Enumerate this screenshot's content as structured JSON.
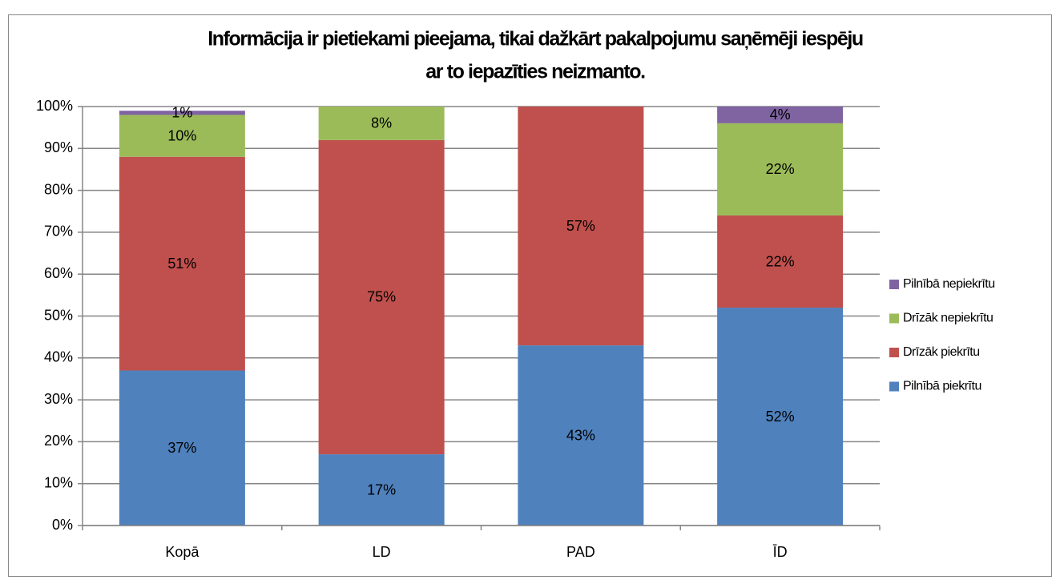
{
  "chart_data": {
    "type": "stacked_bar",
    "title": [
      "Informācija ir pietiekami pieejama, tikai dažkārt pakalpojumu saņēmēji iespēju",
      "ar to iepazīties neizmanto."
    ],
    "categories": [
      "Kopā",
      "LD",
      "PAD",
      "ĪD"
    ],
    "series": [
      {
        "name": "Pilnībā piekrītu",
        "color": "#4f81bd",
        "values": [
          37,
          17,
          43,
          52
        ],
        "value_labels": [
          "37%",
          "17%",
          "43%",
          "52%"
        ]
      },
      {
        "name": "Drīzāk piekrītu",
        "color": "#c0504d",
        "values": [
          51,
          75,
          57,
          22
        ],
        "value_labels": [
          "51%",
          "75%",
          "57%",
          "22%"
        ]
      },
      {
        "name": "Drīzāk nepiekrītu",
        "color": "#9bbb59",
        "values": [
          10,
          8,
          null,
          22
        ],
        "value_labels": [
          "10%",
          "8%",
          null,
          "22%"
        ]
      },
      {
        "name": "Pilnībā nepiekrītu",
        "color": "#8064a2",
        "values": [
          1,
          null,
          null,
          4
        ],
        "value_labels": [
          "1%",
          null,
          null,
          "4%"
        ]
      }
    ],
    "ylim": [
      0,
      100
    ],
    "yticks": [
      {
        "value": 0,
        "label": "0%"
      },
      {
        "value": 10,
        "label": "10%"
      },
      {
        "value": 20,
        "label": "20%"
      },
      {
        "value": 30,
        "label": "30%"
      },
      {
        "value": 40,
        "label": "40%"
      },
      {
        "value": 50,
        "label": "50%"
      },
      {
        "value": 60,
        "label": "60%"
      },
      {
        "value": 70,
        "label": "70%"
      },
      {
        "value": 80,
        "label": "80%"
      },
      {
        "value": 90,
        "label": "90%"
      },
      {
        "value": 100,
        "label": "100%"
      }
    ],
    "grid": true,
    "legend": "right"
  }
}
